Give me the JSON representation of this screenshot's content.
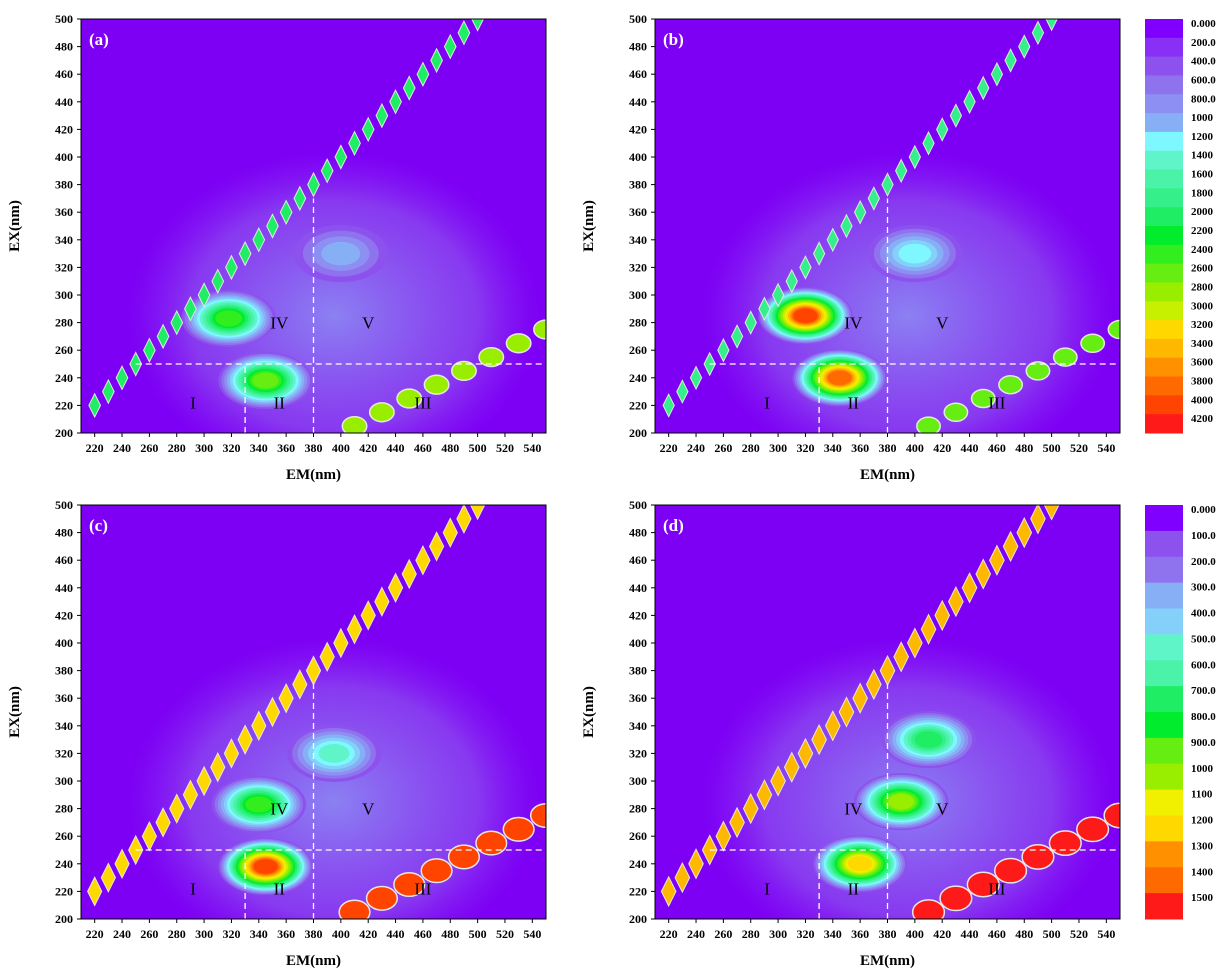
{
  "chart_data": {
    "type": "heatmap",
    "colors": {
      "background": "#7d00f4",
      "legend_scale": [
        "#7f00ff",
        "#8a2ff6",
        "#8d52ee",
        "#8f72ee",
        "#8d8ff2",
        "#87aff5",
        "#84d0fa",
        "#7ff7ff",
        "#5ff5c8",
        "#4af3a8",
        "#35f08a",
        "#1fee65",
        "#00ec2c",
        "#33ee1f",
        "#66ee12",
        "#99ee00",
        "#c6f000",
        "#f0f000",
        "#ffd800",
        "#ffb800",
        "#ff9000",
        "#ff6a00",
        "#ff4400",
        "#ff1a1a"
      ],
      "ridge_outline": "#e6e6e6"
    },
    "panels": [
      {
        "id": "a",
        "label": "(a)",
        "xlabel": "EM(nm)",
        "ylabel": "EX(nm)",
        "xlim": [
          210,
          550
        ],
        "ylim": [
          200,
          500
        ],
        "xticks": [
          220,
          240,
          260,
          280,
          300,
          320,
          340,
          360,
          380,
          400,
          420,
          440,
          460,
          480,
          500,
          520,
          540
        ],
        "yticks": [
          200,
          220,
          240,
          260,
          280,
          300,
          320,
          340,
          360,
          380,
          400,
          420,
          440,
          460,
          480,
          500
        ],
        "region_labels": [
          {
            "text": "I",
            "em": 292,
            "ex": 222
          },
          {
            "text": "II",
            "em": 355,
            "ex": 222
          },
          {
            "text": "III",
            "em": 460,
            "ex": 222
          },
          {
            "text": "IV",
            "em": 355,
            "ex": 280
          },
          {
            "text": "V",
            "em": 420,
            "ex": 280
          }
        ],
        "peaks": [
          {
            "em": 318,
            "ex": 283,
            "level": 0.55
          },
          {
            "em": 345,
            "ex": 238,
            "level": 0.58
          },
          {
            "em": 400,
            "ex": 330,
            "level": 0.18
          }
        ],
        "ridge_level": 0.55
      },
      {
        "id": "b",
        "label": "(b)",
        "xlabel": "EM(nm)",
        "ylabel": "EX(nm)",
        "xlim": [
          210,
          550
        ],
        "ylim": [
          200,
          500
        ],
        "xticks": [
          220,
          240,
          260,
          280,
          300,
          320,
          340,
          360,
          380,
          400,
          420,
          440,
          460,
          480,
          500,
          520,
          540
        ],
        "yticks": [
          200,
          220,
          240,
          260,
          280,
          300,
          320,
          340,
          360,
          380,
          400,
          420,
          440,
          460,
          480,
          500
        ],
        "region_labels": [
          {
            "text": "I",
            "em": 292,
            "ex": 222
          },
          {
            "text": "II",
            "em": 355,
            "ex": 222
          },
          {
            "text": "III",
            "em": 460,
            "ex": 222
          },
          {
            "text": "IV",
            "em": 355,
            "ex": 280
          },
          {
            "text": "V",
            "em": 420,
            "ex": 280
          }
        ],
        "peaks": [
          {
            "em": 320,
            "ex": 285,
            "level": 0.95
          },
          {
            "em": 345,
            "ex": 240,
            "level": 0.9
          },
          {
            "em": 400,
            "ex": 330,
            "level": 0.25
          }
        ],
        "ridge_level": 0.5
      },
      {
        "id": "c",
        "label": "(c)",
        "xlabel": "EM(nm)",
        "ylabel": "EX(nm)",
        "xlim": [
          210,
          550
        ],
        "ylim": [
          200,
          500
        ],
        "xticks": [
          220,
          240,
          260,
          280,
          300,
          320,
          340,
          360,
          380,
          400,
          420,
          440,
          460,
          480,
          500,
          520,
          540
        ],
        "yticks": [
          200,
          220,
          240,
          260,
          280,
          300,
          320,
          340,
          360,
          380,
          400,
          420,
          440,
          460,
          480,
          500
        ],
        "region_labels": [
          {
            "text": "I",
            "em": 292,
            "ex": 222
          },
          {
            "text": "II",
            "em": 355,
            "ex": 222
          },
          {
            "text": "III",
            "em": 460,
            "ex": 222
          },
          {
            "text": "IV",
            "em": 355,
            "ex": 280
          },
          {
            "text": "V",
            "em": 420,
            "ex": 280
          }
        ],
        "peaks": [
          {
            "em": 340,
            "ex": 283,
            "level": 0.55
          },
          {
            "em": 345,
            "ex": 238,
            "level": 0.95
          },
          {
            "em": 395,
            "ex": 320,
            "level": 0.3
          }
        ],
        "ridge_level": 0.85
      },
      {
        "id": "d",
        "label": "(d)",
        "xlabel": "EM(nm)",
        "ylabel": "EX(nm)",
        "xlim": [
          210,
          550
        ],
        "ylim": [
          200,
          500
        ],
        "xticks": [
          220,
          240,
          260,
          280,
          300,
          320,
          340,
          360,
          380,
          400,
          420,
          440,
          460,
          480,
          500,
          520,
          540
        ],
        "yticks": [
          200,
          220,
          240,
          260,
          280,
          300,
          320,
          340,
          360,
          380,
          400,
          420,
          440,
          460,
          480,
          500
        ],
        "region_labels": [
          {
            "text": "I",
            "em": 292,
            "ex": 222
          },
          {
            "text": "II",
            "em": 355,
            "ex": 222
          },
          {
            "text": "III",
            "em": 460,
            "ex": 222
          },
          {
            "text": "IV",
            "em": 355,
            "ex": 280
          },
          {
            "text": "V",
            "em": 420,
            "ex": 280
          }
        ],
        "peaks": [
          {
            "em": 390,
            "ex": 285,
            "level": 0.65
          },
          {
            "em": 360,
            "ex": 240,
            "level": 0.75
          },
          {
            "em": 410,
            "ex": 330,
            "level": 0.45
          }
        ],
        "ridge_level": 0.9
      }
    ],
    "boundaries": {
      "em": [
        330,
        380
      ],
      "ex": 250
    },
    "legends": [
      {
        "id": "legend-top",
        "applies_to": [
          "a",
          "b"
        ],
        "labels": [
          "0.000",
          "200.0",
          "400.0",
          "600.0",
          "800.0",
          "1000",
          "1200",
          "1400",
          "1600",
          "1800",
          "2000",
          "2200",
          "2400",
          "2600",
          "2800",
          "3000",
          "3200",
          "3400",
          "3600",
          "3800",
          "4000",
          "4200"
        ]
      },
      {
        "id": "legend-bottom",
        "applies_to": [
          "c",
          "d"
        ],
        "labels": [
          "0.000",
          "100.0",
          "200.0",
          "300.0",
          "400.0",
          "500.0",
          "600.0",
          "700.0",
          "800.0",
          "900.0",
          "1000",
          "1100",
          "1200",
          "1300",
          "1400",
          "1500"
        ]
      }
    ]
  }
}
